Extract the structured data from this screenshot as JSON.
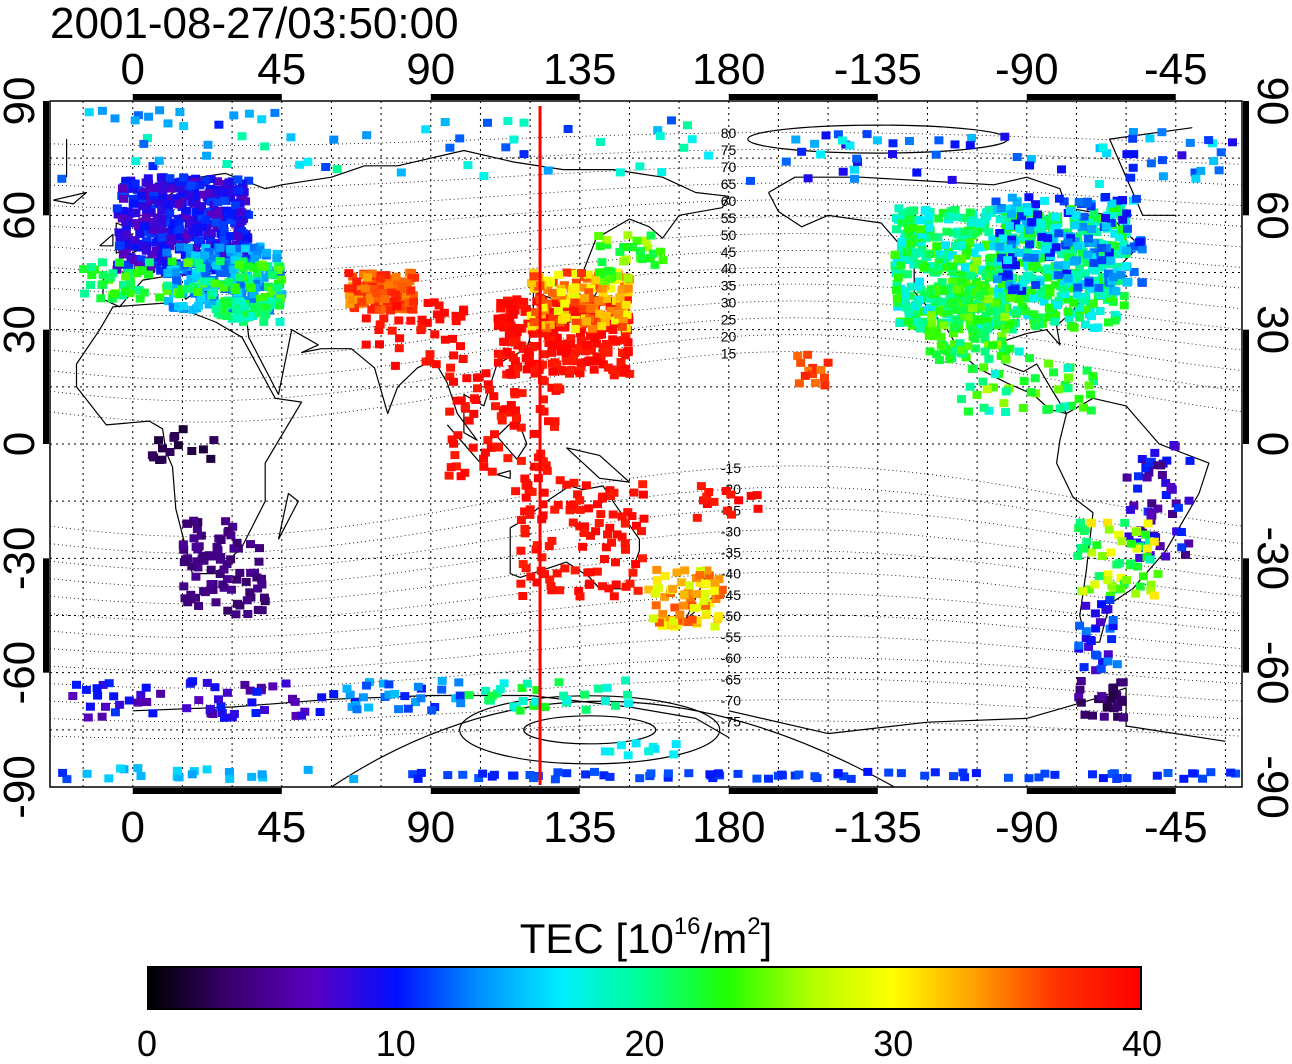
{
  "title": "2001-08-27/03:50:00",
  "axes": {
    "top_x_ticks": [
      "0",
      "45",
      "90",
      "135",
      "180",
      "-135",
      "-90",
      "-45"
    ],
    "bottom_x_ticks": [
      "0",
      "45",
      "90",
      "135",
      "180",
      "-135",
      "-90",
      "-45"
    ],
    "left_y_ticks": [
      "90",
      "60",
      "30",
      "0",
      "-30",
      "-60",
      "-90"
    ],
    "right_y_ticks": [
      "90",
      "60",
      "30",
      "0",
      "-30",
      "-60",
      "-90"
    ]
  },
  "magnetic_latitude_labels": [
    "80",
    "75",
    "70",
    "65",
    "60",
    "55",
    "50",
    "45",
    "40",
    "35",
    "30",
    "25",
    "20",
    "15",
    "-15",
    "-20",
    "-25",
    "-30",
    "-35",
    "-40",
    "-45",
    "-50",
    "-55",
    "-60",
    "-65",
    "-70",
    "-75"
  ],
  "marker_line": {
    "longitude": 123,
    "color": "#ff0000"
  },
  "colorbar": {
    "title_main": "TEC  [10",
    "title_exp1": "16",
    "title_mid": "/m",
    "title_exp2": "2",
    "title_end": "]",
    "min": 0,
    "max": 40,
    "tick_labels": [
      "0",
      "10",
      "20",
      "30",
      "40"
    ],
    "colors": [
      "#000000",
      "#3a0070",
      "#5a00c0",
      "#0010ff",
      "#0090ff",
      "#00f0ff",
      "#00ff90",
      "#20ff00",
      "#b0ff00",
      "#ffff00",
      "#ffa000",
      "#ff3000",
      "#ff0000"
    ]
  }
}
